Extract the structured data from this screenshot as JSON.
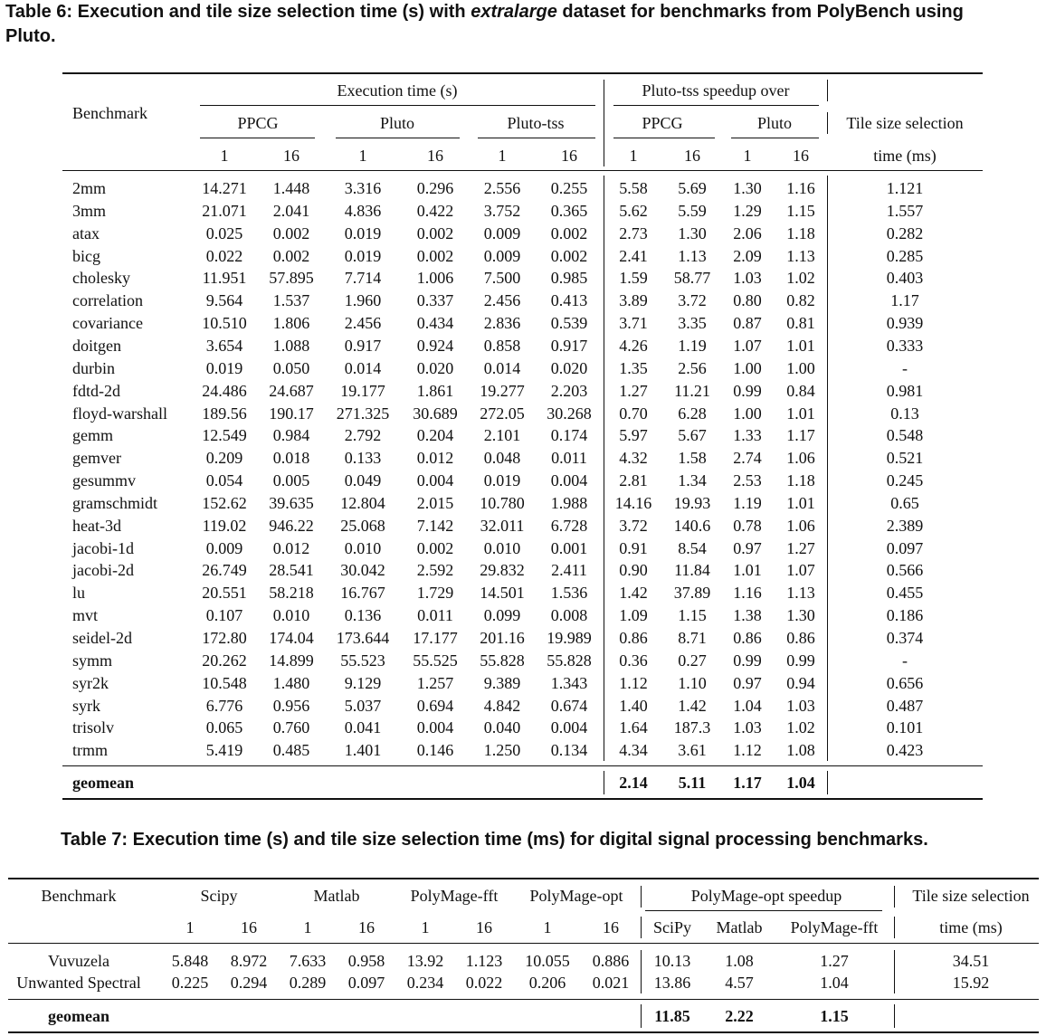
{
  "table6": {
    "caption": {
      "label": "Table 6:",
      "pre": "Execution and tile size selection time (s) with",
      "italic": "extralarge",
      "post": "dataset for benchmarks from PolyBench using",
      "line2": "Pluto."
    },
    "headers": {
      "benchmark": "Benchmark",
      "execution_time": "Execution time (s)",
      "speedup_over": "Pluto-tss speedup over",
      "ppcg": "PPCG",
      "pluto": "Pluto",
      "pluto_tss": "Pluto-tss",
      "tss_line1": "Tile size selection",
      "tss_line2": "time (ms)",
      "threads": [
        "1",
        "16",
        "1",
        "16",
        "1",
        "16",
        "1",
        "16",
        "1",
        "16"
      ]
    },
    "rows": [
      [
        "2mm",
        "14.271",
        "1.448",
        "3.316",
        "0.296",
        "2.556",
        "0.255",
        "5.58",
        "5.69",
        "1.30",
        "1.16",
        "1.121"
      ],
      [
        "3mm",
        "21.071",
        "2.041",
        "4.836",
        "0.422",
        "3.752",
        "0.365",
        "5.62",
        "5.59",
        "1.29",
        "1.15",
        "1.557"
      ],
      [
        "atax",
        "0.025",
        "0.002",
        "0.019",
        "0.002",
        "0.009",
        "0.002",
        "2.73",
        "1.30",
        "2.06",
        "1.18",
        "0.282"
      ],
      [
        "bicg",
        "0.022",
        "0.002",
        "0.019",
        "0.002",
        "0.009",
        "0.002",
        "2.41",
        "1.13",
        "2.09",
        "1.13",
        "0.285"
      ],
      [
        "cholesky",
        "11.951",
        "57.895",
        "7.714",
        "1.006",
        "7.500",
        "0.985",
        "1.59",
        "58.77",
        "1.03",
        "1.02",
        "0.403"
      ],
      [
        "correlation",
        "9.564",
        "1.537",
        "1.960",
        "0.337",
        "2.456",
        "0.413",
        "3.89",
        "3.72",
        "0.80",
        "0.82",
        "1.17"
      ],
      [
        "covariance",
        "10.510",
        "1.806",
        "2.456",
        "0.434",
        "2.836",
        "0.539",
        "3.71",
        "3.35",
        "0.87",
        "0.81",
        "0.939"
      ],
      [
        "doitgen",
        "3.654",
        "1.088",
        "0.917",
        "0.924",
        "0.858",
        "0.917",
        "4.26",
        "1.19",
        "1.07",
        "1.01",
        "0.333"
      ],
      [
        "durbin",
        "0.019",
        "0.050",
        "0.014",
        "0.020",
        "0.014",
        "0.020",
        "1.35",
        "2.56",
        "1.00",
        "1.00",
        "-"
      ],
      [
        "fdtd-2d",
        "24.486",
        "24.687",
        "19.177",
        "1.861",
        "19.277",
        "2.203",
        "1.27",
        "11.21",
        "0.99",
        "0.84",
        "0.981"
      ],
      [
        "floyd-warshall",
        "189.56",
        "190.17",
        "271.325",
        "30.689",
        "272.05",
        "30.268",
        "0.70",
        "6.28",
        "1.00",
        "1.01",
        "0.13"
      ],
      [
        "gemm",
        "12.549",
        "0.984",
        "2.792",
        "0.204",
        "2.101",
        "0.174",
        "5.97",
        "5.67",
        "1.33",
        "1.17",
        "0.548"
      ],
      [
        "gemver",
        "0.209",
        "0.018",
        "0.133",
        "0.012",
        "0.048",
        "0.011",
        "4.32",
        "1.58",
        "2.74",
        "1.06",
        "0.521"
      ],
      [
        "gesummv",
        "0.054",
        "0.005",
        "0.049",
        "0.004",
        "0.019",
        "0.004",
        "2.81",
        "1.34",
        "2.53",
        "1.18",
        "0.245"
      ],
      [
        "gramschmidt",
        "152.62",
        "39.635",
        "12.804",
        "2.015",
        "10.780",
        "1.988",
        "14.16",
        "19.93",
        "1.19",
        "1.01",
        "0.65"
      ],
      [
        "heat-3d",
        "119.02",
        "946.22",
        "25.068",
        "7.142",
        "32.011",
        "6.728",
        "3.72",
        "140.6",
        "0.78",
        "1.06",
        "2.389"
      ],
      [
        "jacobi-1d",
        "0.009",
        "0.012",
        "0.010",
        "0.002",
        "0.010",
        "0.001",
        "0.91",
        "8.54",
        "0.97",
        "1.27",
        "0.097"
      ],
      [
        "jacobi-2d",
        "26.749",
        "28.541",
        "30.042",
        "2.592",
        "29.832",
        "2.411",
        "0.90",
        "11.84",
        "1.01",
        "1.07",
        "0.566"
      ],
      [
        "lu",
        "20.551",
        "58.218",
        "16.767",
        "1.729",
        "14.501",
        "1.536",
        "1.42",
        "37.89",
        "1.16",
        "1.13",
        "0.455"
      ],
      [
        "mvt",
        "0.107",
        "0.010",
        "0.136",
        "0.011",
        "0.099",
        "0.008",
        "1.09",
        "1.15",
        "1.38",
        "1.30",
        "0.186"
      ],
      [
        "seidel-2d",
        "172.80",
        "174.04",
        "173.644",
        "17.177",
        "201.16",
        "19.989",
        "0.86",
        "8.71",
        "0.86",
        "0.86",
        "0.374"
      ],
      [
        "symm",
        "20.262",
        "14.899",
        "55.523",
        "55.525",
        "55.828",
        "55.828",
        "0.36",
        "0.27",
        "0.99",
        "0.99",
        "-"
      ],
      [
        "syr2k",
        "10.548",
        "1.480",
        "9.129",
        "1.257",
        "9.389",
        "1.343",
        "1.12",
        "1.10",
        "0.97",
        "0.94",
        "0.656"
      ],
      [
        "syrk",
        "6.776",
        "0.956",
        "5.037",
        "0.694",
        "4.842",
        "0.674",
        "1.40",
        "1.42",
        "1.04",
        "1.03",
        "0.487"
      ],
      [
        "trisolv",
        "0.065",
        "0.760",
        "0.041",
        "0.004",
        "0.040",
        "0.004",
        "1.64",
        "187.3",
        "1.03",
        "1.02",
        "0.101"
      ],
      [
        "trmm",
        "5.419",
        "0.485",
        "1.401",
        "0.146",
        "1.250",
        "0.134",
        "4.34",
        "3.61",
        "1.12",
        "1.08",
        "0.423"
      ]
    ],
    "geomean": {
      "label": "geomean",
      "values": [
        "2.14",
        "5.11",
        "1.17",
        "1.04"
      ]
    }
  },
  "table7": {
    "caption": {
      "label": "Table 7:",
      "text": "Execution time (s) and tile size selection time (ms) for digital signal processing benchmarks."
    },
    "headers": {
      "benchmark": "Benchmark",
      "scipy": "Scipy",
      "matlab": "Matlab",
      "polymage_fft": "PolyMage-fft",
      "polymage_opt": "PolyMage-opt",
      "speedup": "PolyMage-opt speedup",
      "tss_line1": "Tile size selection",
      "tss_line2": "time (ms)",
      "threads": [
        "1",
        "16",
        "1",
        "16",
        "1",
        "16",
        "1",
        "16"
      ],
      "speedup_cols": [
        "SciPy",
        "Matlab",
        "PolyMage-fft"
      ]
    },
    "rows": [
      [
        "Vuvuzela",
        "5.848",
        "8.972",
        "7.633",
        "0.958",
        "13.92",
        "1.123",
        "10.055",
        "0.886",
        "10.13",
        "1.08",
        "1.27",
        "34.51"
      ],
      [
        "Unwanted Spectral",
        "0.225",
        "0.294",
        "0.289",
        "0.097",
        "0.234",
        "0.022",
        "0.206",
        "0.021",
        "13.86",
        "4.57",
        "1.04",
        "15.92"
      ]
    ],
    "geomean": {
      "label": "geomean",
      "values": [
        "11.85",
        "2.22",
        "1.15"
      ]
    }
  }
}
